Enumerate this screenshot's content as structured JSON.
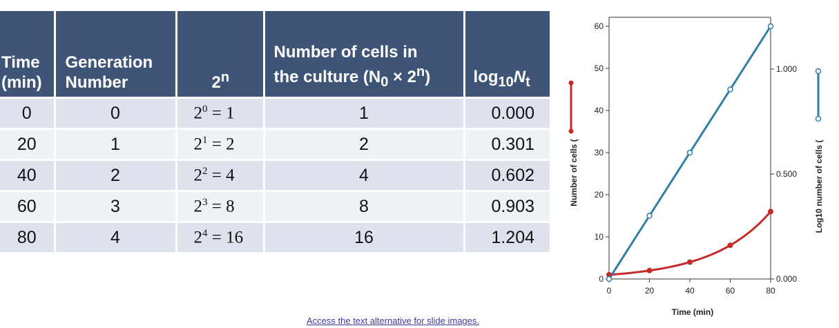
{
  "table": {
    "headers": [
      "Time (min)",
      "Generation Number",
      "2ⁿ",
      "Number of cells in the culture (N₀ × 2ⁿ)",
      "log10Nt"
    ],
    "header_lines": [
      [
        "Time",
        "(min)"
      ],
      [
        "Generation",
        "Number"
      ],
      [
        "2",
        "n"
      ],
      [
        "Number of cells in",
        "the culture (N",
        "0",
        " × 2",
        "n",
        ")"
      ],
      [
        "log",
        "10",
        "N",
        "t"
      ]
    ],
    "rows": [
      {
        "time": "0",
        "generation": "0",
        "power_base": "2",
        "power_exp": "0",
        "power_eq": " = 1",
        "cells": "1",
        "log": "0.000"
      },
      {
        "time": "20",
        "generation": "1",
        "power_base": "2",
        "power_exp": "1",
        "power_eq": " = 2",
        "cells": "2",
        "log": "0.301"
      },
      {
        "time": "40",
        "generation": "2",
        "power_base": "2",
        "power_exp": "2",
        "power_eq": " = 4",
        "cells": "4",
        "log": "0.602"
      },
      {
        "time": "60",
        "generation": "3",
        "power_base": "2",
        "power_exp": "3",
        "power_eq": " = 8",
        "cells": "8",
        "log": "0.903"
      },
      {
        "time": "80",
        "generation": "4",
        "power_base": "2",
        "power_exp": "4",
        "power_eq": " = 16",
        "cells": "16",
        "log": "1.204"
      }
    ]
  },
  "chart_data": {
    "type": "line",
    "x": [
      0,
      20,
      40,
      60,
      80
    ],
    "xlabel": "Time (min)",
    "xlim": [
      0,
      80
    ],
    "x_ticks": [
      0,
      20,
      40,
      60,
      80
    ],
    "ylabel_left": "Number of cells (",
    "ylim_left": [
      0,
      60
    ],
    "y_ticks_left": [
      0,
      10,
      20,
      30,
      40,
      50,
      60
    ],
    "ylabel_right": "Log10 number of cells (",
    "ylim_right": [
      0,
      1.204
    ],
    "y_ticks_right": [
      {
        "value": 0,
        "label": "0.000"
      },
      {
        "value": 0.5,
        "label": "0.500"
      },
      {
        "value": 1.0,
        "label": "1.000"
      }
    ],
    "series": [
      {
        "axis": "left",
        "values": [
          1,
          2,
          4,
          8,
          16
        ],
        "color": "#c62a2a",
        "marker": "filled-circle"
      },
      {
        "axis": "right",
        "values": [
          0.0,
          0.301,
          0.602,
          0.903,
          1.204
        ],
        "color": "#2e7ea6",
        "marker": "open-circle"
      }
    ],
    "grid": false,
    "legend_placement": "in axis labels"
  },
  "link": {
    "text": "Access the text alternative for slide images."
  }
}
